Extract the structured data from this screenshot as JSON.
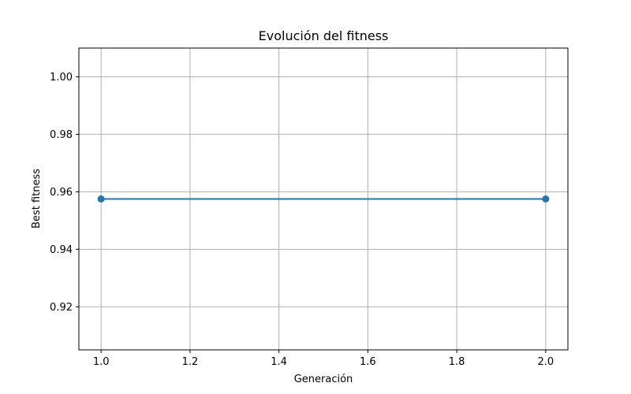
{
  "chart_data": {
    "type": "line",
    "title": "Evolución del fitness",
    "xlabel": "Generación",
    "ylabel": "Best fitness",
    "x": [
      1,
      2
    ],
    "series": [
      {
        "values": [
          0.9575,
          0.9575
        ],
        "color": "#1f77b4",
        "marker": "circle"
      }
    ],
    "xlim": [
      0.95,
      2.05
    ],
    "ylim": [
      0.905,
      1.01
    ],
    "xticks": [
      1.0,
      1.2,
      1.4,
      1.6,
      1.8,
      2.0
    ],
    "xtick_labels": [
      "1.0",
      "1.2",
      "1.4",
      "1.6",
      "1.8",
      "2.0"
    ],
    "yticks": [
      0.92,
      0.94,
      0.96,
      0.98,
      1.0
    ],
    "ytick_labels": [
      "0.92",
      "0.94",
      "0.96",
      "0.98",
      "1.00"
    ],
    "grid": true,
    "legend": "none"
  }
}
